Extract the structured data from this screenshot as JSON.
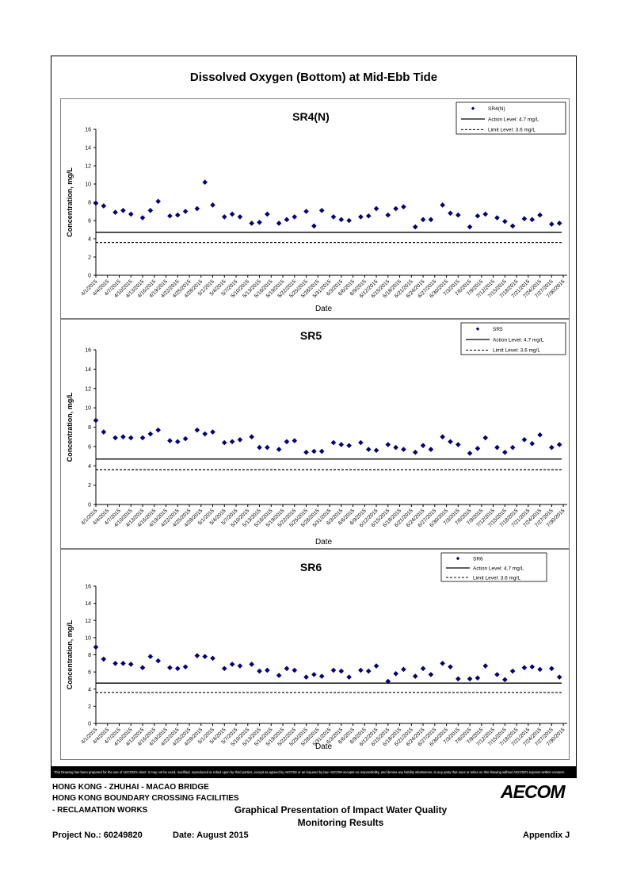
{
  "page_title": "Dissolved Oxygen (Bottom) at Mid-Ebb Tide",
  "chart_data": [
    {
      "type": "scatter",
      "title": "SR4(N)",
      "xlabel": "Date",
      "ylabel": "Concentration, mg/L",
      "ylim": [
        0,
        16
      ],
      "yticks": [
        0,
        2,
        4,
        6,
        8,
        10,
        12,
        14,
        16
      ],
      "xlim": [
        0,
        121
      ],
      "xticks": [
        "4/1/2015",
        "4/4/2015",
        "4/7/2015",
        "4/10/2015",
        "4/13/2015",
        "4/16/2015",
        "4/19/2015",
        "4/22/2015",
        "4/25/2015",
        "4/28/2015",
        "5/1/2015",
        "5/4/2015",
        "5/7/2015",
        "5/10/2015",
        "5/13/2015",
        "5/16/2015",
        "5/19/2015",
        "5/22/2015",
        "5/25/2015",
        "5/28/2015",
        "5/31/2015",
        "6/3/2015",
        "6/6/2015",
        "6/9/2015",
        "6/12/2015",
        "6/15/2015",
        "6/18/2015",
        "6/21/2015",
        "6/24/2015",
        "6/27/2015",
        "6/30/2015",
        "7/3/2015",
        "7/6/2015",
        "7/9/2015",
        "7/12/2015",
        "7/15/2015",
        "7/18/2015",
        "7/21/2015",
        "7/24/2015",
        "7/27/2015",
        "7/30/2015"
      ],
      "legend": {
        "series": "SR4(N)",
        "action": "Action Level: 4.7 mg/L",
        "limit": "Limit Level: 3.6 mg/L",
        "position": "top-right"
      },
      "action_level": 4.7,
      "limit_level": 3.6,
      "x": [
        0,
        2,
        5,
        7,
        9,
        12,
        14,
        16,
        19,
        21,
        23,
        26,
        28,
        30,
        33,
        35,
        37,
        40,
        42,
        44,
        47,
        49,
        51,
        54,
        56,
        58,
        61,
        63,
        65,
        68,
        70,
        72,
        75,
        77,
        79,
        82,
        84,
        86,
        89,
        91,
        93,
        96,
        98,
        100,
        103,
        105,
        107,
        110,
        112,
        114,
        117,
        119
      ],
      "values": [
        7.9,
        7.6,
        6.9,
        7.1,
        6.7,
        6.3,
        7.1,
        8.1,
        6.5,
        6.6,
        7.0,
        7.3,
        10.2,
        7.7,
        6.4,
        6.7,
        6.4,
        5.7,
        5.8,
        6.7,
        5.7,
        6.1,
        6.4,
        7.0,
        5.4,
        7.1,
        6.4,
        6.1,
        6.0,
        6.4,
        6.5,
        7.3,
        6.6,
        7.3,
        7.5,
        5.3,
        6.1,
        6.1,
        7.7,
        6.8,
        6.6,
        5.3,
        6.5,
        6.7,
        6.3,
        5.9,
        5.4,
        6.2,
        6.1,
        6.6,
        5.6,
        5.7
      ]
    },
    {
      "type": "scatter",
      "title": "SR5",
      "xlabel": "Date",
      "ylabel": "Concentration, mg/L",
      "ylim": [
        0,
        16
      ],
      "yticks": [
        0,
        2,
        4,
        6,
        8,
        10,
        12,
        14,
        16
      ],
      "xlim": [
        0,
        121
      ],
      "xticks": [
        "4/1/2015",
        "4/4/2015",
        "4/7/2015",
        "4/10/2015",
        "4/13/2015",
        "4/16/2015",
        "4/19/2015",
        "4/22/2015",
        "4/25/2015",
        "4/28/2015",
        "5/1/2015",
        "5/4/2015",
        "5/7/2015",
        "5/10/2015",
        "5/13/2015",
        "5/16/2015",
        "5/19/2015",
        "5/22/2015",
        "5/25/2015",
        "5/28/2015",
        "5/31/2015",
        "6/3/2015",
        "6/6/2015",
        "6/9/2015",
        "6/12/2015",
        "6/15/2015",
        "6/18/2015",
        "6/21/2015",
        "6/24/2015",
        "6/27/2015",
        "6/30/2015",
        "7/3/2015",
        "7/6/2015",
        "7/9/2015",
        "7/12/2015",
        "7/15/2015",
        "7/18/2015",
        "7/21/2015",
        "7/24/2015",
        "7/27/2015",
        "7/30/2015"
      ],
      "legend": {
        "series": "SR5",
        "action": "Action Level: 4.7 mg/L",
        "limit": "Limit Level: 3.6 mg/L",
        "position": "top-right"
      },
      "action_level": 4.7,
      "limit_level": 3.6,
      "x": [
        0,
        2,
        5,
        7,
        9,
        12,
        14,
        16,
        19,
        21,
        23,
        26,
        28,
        30,
        33,
        35,
        37,
        40,
        42,
        44,
        47,
        49,
        51,
        54,
        56,
        58,
        61,
        63,
        65,
        68,
        70,
        72,
        75,
        77,
        79,
        82,
        84,
        86,
        89,
        91,
        93,
        96,
        98,
        100,
        103,
        105,
        107,
        110,
        112,
        114,
        117,
        119
      ],
      "values": [
        8.7,
        7.5,
        6.9,
        7.0,
        6.9,
        6.9,
        7.3,
        7.7,
        6.6,
        6.5,
        6.8,
        7.7,
        7.3,
        7.5,
        6.4,
        6.5,
        6.7,
        7.0,
        5.9,
        5.9,
        5.7,
        6.5,
        6.6,
        5.4,
        5.5,
        5.5,
        6.4,
        6.2,
        6.1,
        6.4,
        5.7,
        5.6,
        6.2,
        5.9,
        5.7,
        5.4,
        6.1,
        5.7,
        7.0,
        6.5,
        6.2,
        5.3,
        5.8,
        6.9,
        5.9,
        5.4,
        5.9,
        6.7,
        6.3,
        7.2,
        5.9,
        6.2
      ]
    },
    {
      "type": "scatter",
      "title": "SR6",
      "xlabel": "Date",
      "ylabel": "Concentration, mg/L",
      "ylim": [
        0,
        16
      ],
      "yticks": [
        0,
        2,
        4,
        6,
        8,
        10,
        12,
        14,
        16
      ],
      "xlim": [
        0,
        121
      ],
      "xticks": [
        "4/1/2015",
        "4/4/2015",
        "4/7/2015",
        "4/10/2015",
        "4/13/2015",
        "4/16/2015",
        "4/19/2015",
        "4/22/2015",
        "4/25/2015",
        "4/28/2015",
        "5/1/2015",
        "5/4/2015",
        "5/7/2015",
        "5/10/2015",
        "5/13/2015",
        "5/16/2015",
        "5/19/2015",
        "5/22/2015",
        "5/25/2015",
        "5/28/2015",
        "5/31/2015",
        "6/3/2015",
        "6/6/2015",
        "6/9/2015",
        "6/12/2015",
        "6/15/2015",
        "6/18/2015",
        "6/21/2015",
        "6/24/2015",
        "6/27/2015",
        "6/30/2015",
        "7/3/2015",
        "7/6/2015",
        "7/9/2015",
        "7/12/2015",
        "7/15/2015",
        "7/18/2015",
        "7/21/2015",
        "7/24/2015",
        "7/27/2015",
        "7/30/2015"
      ],
      "legend": {
        "series": "SR6",
        "action": "Action Level: 4.7 mg/L",
        "limit": "Limit Level: 3.6 mg/L",
        "position": "top-right"
      },
      "action_level": 4.7,
      "limit_level": 3.6,
      "x": [
        0,
        2,
        5,
        7,
        9,
        12,
        14,
        16,
        19,
        21,
        23,
        26,
        28,
        30,
        33,
        35,
        37,
        40,
        42,
        44,
        47,
        49,
        51,
        54,
        56,
        58,
        61,
        63,
        65,
        68,
        70,
        72,
        75,
        77,
        79,
        82,
        84,
        86,
        89,
        91,
        93,
        96,
        98,
        100,
        103,
        105,
        107,
        110,
        112,
        114,
        117,
        119
      ],
      "values": [
        8.9,
        7.5,
        7.0,
        7.0,
        6.9,
        6.5,
        7.8,
        7.3,
        6.5,
        6.4,
        6.6,
        7.9,
        7.8,
        7.6,
        6.4,
        6.9,
        6.7,
        6.9,
        6.1,
        6.2,
        5.6,
        6.4,
        6.2,
        5.4,
        5.7,
        5.5,
        6.2,
        6.1,
        5.4,
        6.2,
        6.1,
        6.7,
        4.9,
        5.8,
        6.3,
        5.5,
        6.4,
        5.7,
        7.0,
        6.6,
        5.2,
        5.2,
        5.3,
        6.7,
        5.7,
        5.1,
        6.1,
        6.5,
        6.6,
        6.3,
        6.4,
        5.4
      ]
    }
  ],
  "disclaimer": "This Drawing has been prepared for the use of AECOM's client. It may not be used, modified, reproduced or relied upon by third parties, except as agreed by AECOM or as required by law. AECOM accepts no responsibility, and denies any liability whatsoever, to any party that uses or relies on this drawing without AECOM's express written consent.",
  "footer": {
    "line1": "HONG KONG - ZHUHAI - MACAO BRIDGE",
    "line2": "HONG KONG BOUNDARY CROSSING FACILITIES",
    "line3": "- RECLAMATION WORKS",
    "center_line1": "Graphical Presentation of Impact Water Quality",
    "center_line2": "Monitoring Results",
    "project_no": "Project No.: 60249820",
    "date": "Date: August 2015",
    "appendix": "Appendix J",
    "logo": "AECOM"
  }
}
